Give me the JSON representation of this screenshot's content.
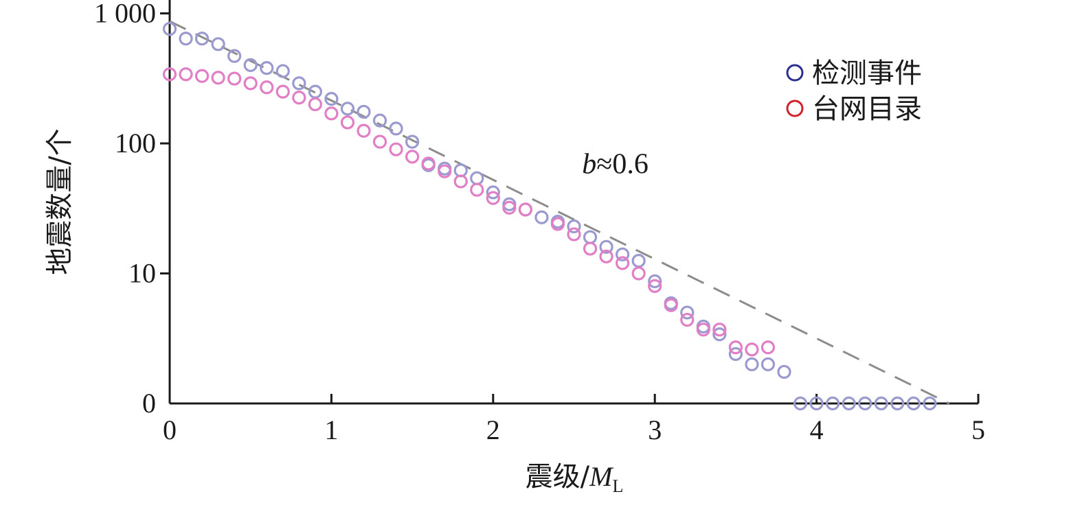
{
  "chart_data": {
    "type": "scatter",
    "title": "",
    "xlabel": "震级/",
    "xlabel_symbol": "M",
    "xlabel_subscript": "L",
    "ylabel": "地震数量/个",
    "xlim": [
      0,
      5
    ],
    "ylim_log": [
      1,
      1000
    ],
    "y_scale": "log (zero row shown at bottom)",
    "x_ticks": [
      "0",
      "1",
      "2",
      "3",
      "4",
      "5"
    ],
    "y_ticks": [
      "1 000",
      "100",
      "10",
      "0"
    ],
    "legend_position": "top-right",
    "grid": false,
    "series": [
      {
        "name": "检测事件",
        "legend_color": "#2b2f8f",
        "marker_color": "#9a9ad0",
        "points": [
          [
            0.0,
            760
          ],
          [
            0.1,
            640
          ],
          [
            0.2,
            640
          ],
          [
            0.3,
            580
          ],
          [
            0.4,
            470
          ],
          [
            0.5,
            400
          ],
          [
            0.6,
            380
          ],
          [
            0.7,
            360
          ],
          [
            0.8,
            290
          ],
          [
            0.9,
            250
          ],
          [
            1.0,
            220
          ],
          [
            1.1,
            185
          ],
          [
            1.2,
            175
          ],
          [
            1.3,
            150
          ],
          [
            1.4,
            130
          ],
          [
            1.5,
            103
          ],
          [
            1.6,
            68
          ],
          [
            1.7,
            64
          ],
          [
            1.8,
            62
          ],
          [
            1.9,
            54
          ],
          [
            2.0,
            42
          ],
          [
            2.1,
            34
          ],
          [
            2.2,
            31
          ],
          [
            2.3,
            27
          ],
          [
            2.4,
            25
          ],
          [
            2.5,
            23
          ],
          [
            2.6,
            19
          ],
          [
            2.7,
            16
          ],
          [
            2.8,
            14
          ],
          [
            2.9,
            12.5
          ],
          [
            3.0,
            8.7
          ],
          [
            3.1,
            5.9
          ],
          [
            3.2,
            5.0
          ],
          [
            3.3,
            3.9
          ],
          [
            3.4,
            3.4
          ],
          [
            3.5,
            2.4
          ],
          [
            3.6,
            2.0
          ],
          [
            3.7,
            2.0
          ],
          [
            3.8,
            1.75
          ],
          [
            3.9,
            0
          ],
          [
            4.0,
            0
          ],
          [
            4.1,
            0
          ],
          [
            4.2,
            0
          ],
          [
            4.3,
            0
          ],
          [
            4.4,
            0
          ],
          [
            4.5,
            0
          ],
          [
            4.6,
            0
          ],
          [
            4.7,
            0
          ]
        ]
      },
      {
        "name": "台网目录",
        "legend_color": "#d0202a",
        "marker_color": "#e27ec6",
        "points": [
          [
            0.0,
            340
          ],
          [
            0.1,
            340
          ],
          [
            0.2,
            330
          ],
          [
            0.3,
            320
          ],
          [
            0.4,
            315
          ],
          [
            0.5,
            290
          ],
          [
            0.6,
            270
          ],
          [
            0.7,
            250
          ],
          [
            0.8,
            225
          ],
          [
            0.9,
            200
          ],
          [
            1.0,
            170
          ],
          [
            1.1,
            145
          ],
          [
            1.2,
            125
          ],
          [
            1.3,
            103
          ],
          [
            1.4,
            90
          ],
          [
            1.5,
            79
          ],
          [
            1.6,
            70
          ],
          [
            1.7,
            61
          ],
          [
            1.8,
            51
          ],
          [
            1.9,
            44
          ],
          [
            2.0,
            38
          ],
          [
            2.1,
            32
          ],
          [
            2.2,
            31
          ],
          [
            2.4,
            24
          ],
          [
            2.5,
            20
          ],
          [
            2.6,
            15.5
          ],
          [
            2.7,
            13.5
          ],
          [
            2.8,
            12
          ],
          [
            2.9,
            10
          ],
          [
            3.0,
            8.0
          ],
          [
            3.1,
            5.7
          ],
          [
            3.2,
            4.4
          ],
          [
            3.3,
            3.7
          ],
          [
            3.4,
            3.7
          ],
          [
            3.5,
            2.7
          ],
          [
            3.6,
            2.6
          ],
          [
            3.7,
            2.7
          ]
        ]
      }
    ],
    "fit_line": {
      "style": "dashed",
      "color": "#8c8c8c",
      "from": [
        0.0,
        870
      ],
      "to": [
        4.82,
        1.0
      ]
    },
    "annotation": {
      "symbol": "b",
      "value": "≈0.6",
      "x": 2.55,
      "y": 70
    }
  }
}
